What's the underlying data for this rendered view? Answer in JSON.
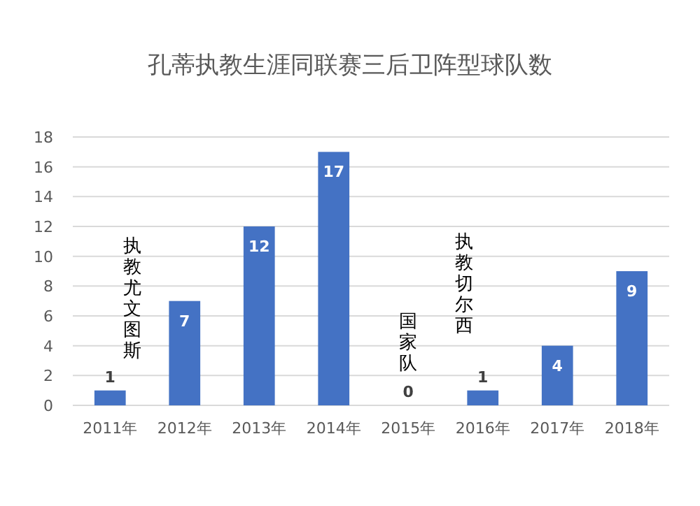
{
  "chart_data": {
    "type": "bar",
    "title": "孔蒂执教生涯同联赛三后卫阵型球队数",
    "categories": [
      "2011年",
      "2012年",
      "2013年",
      "2014年",
      "2015年",
      "2016年",
      "2017年",
      "2018年"
    ],
    "values": [
      1,
      7,
      12,
      17,
      0,
      1,
      4,
      9
    ],
    "color": "#4472c4",
    "ylim": [
      0,
      18
    ],
    "yticks": [
      0,
      2,
      4,
      6,
      8,
      10,
      12,
      14,
      16,
      18
    ],
    "grid": "y",
    "data_labels": true,
    "annotations": [
      "执教尤文图斯",
      "国家队",
      "执教切尔西"
    ]
  }
}
